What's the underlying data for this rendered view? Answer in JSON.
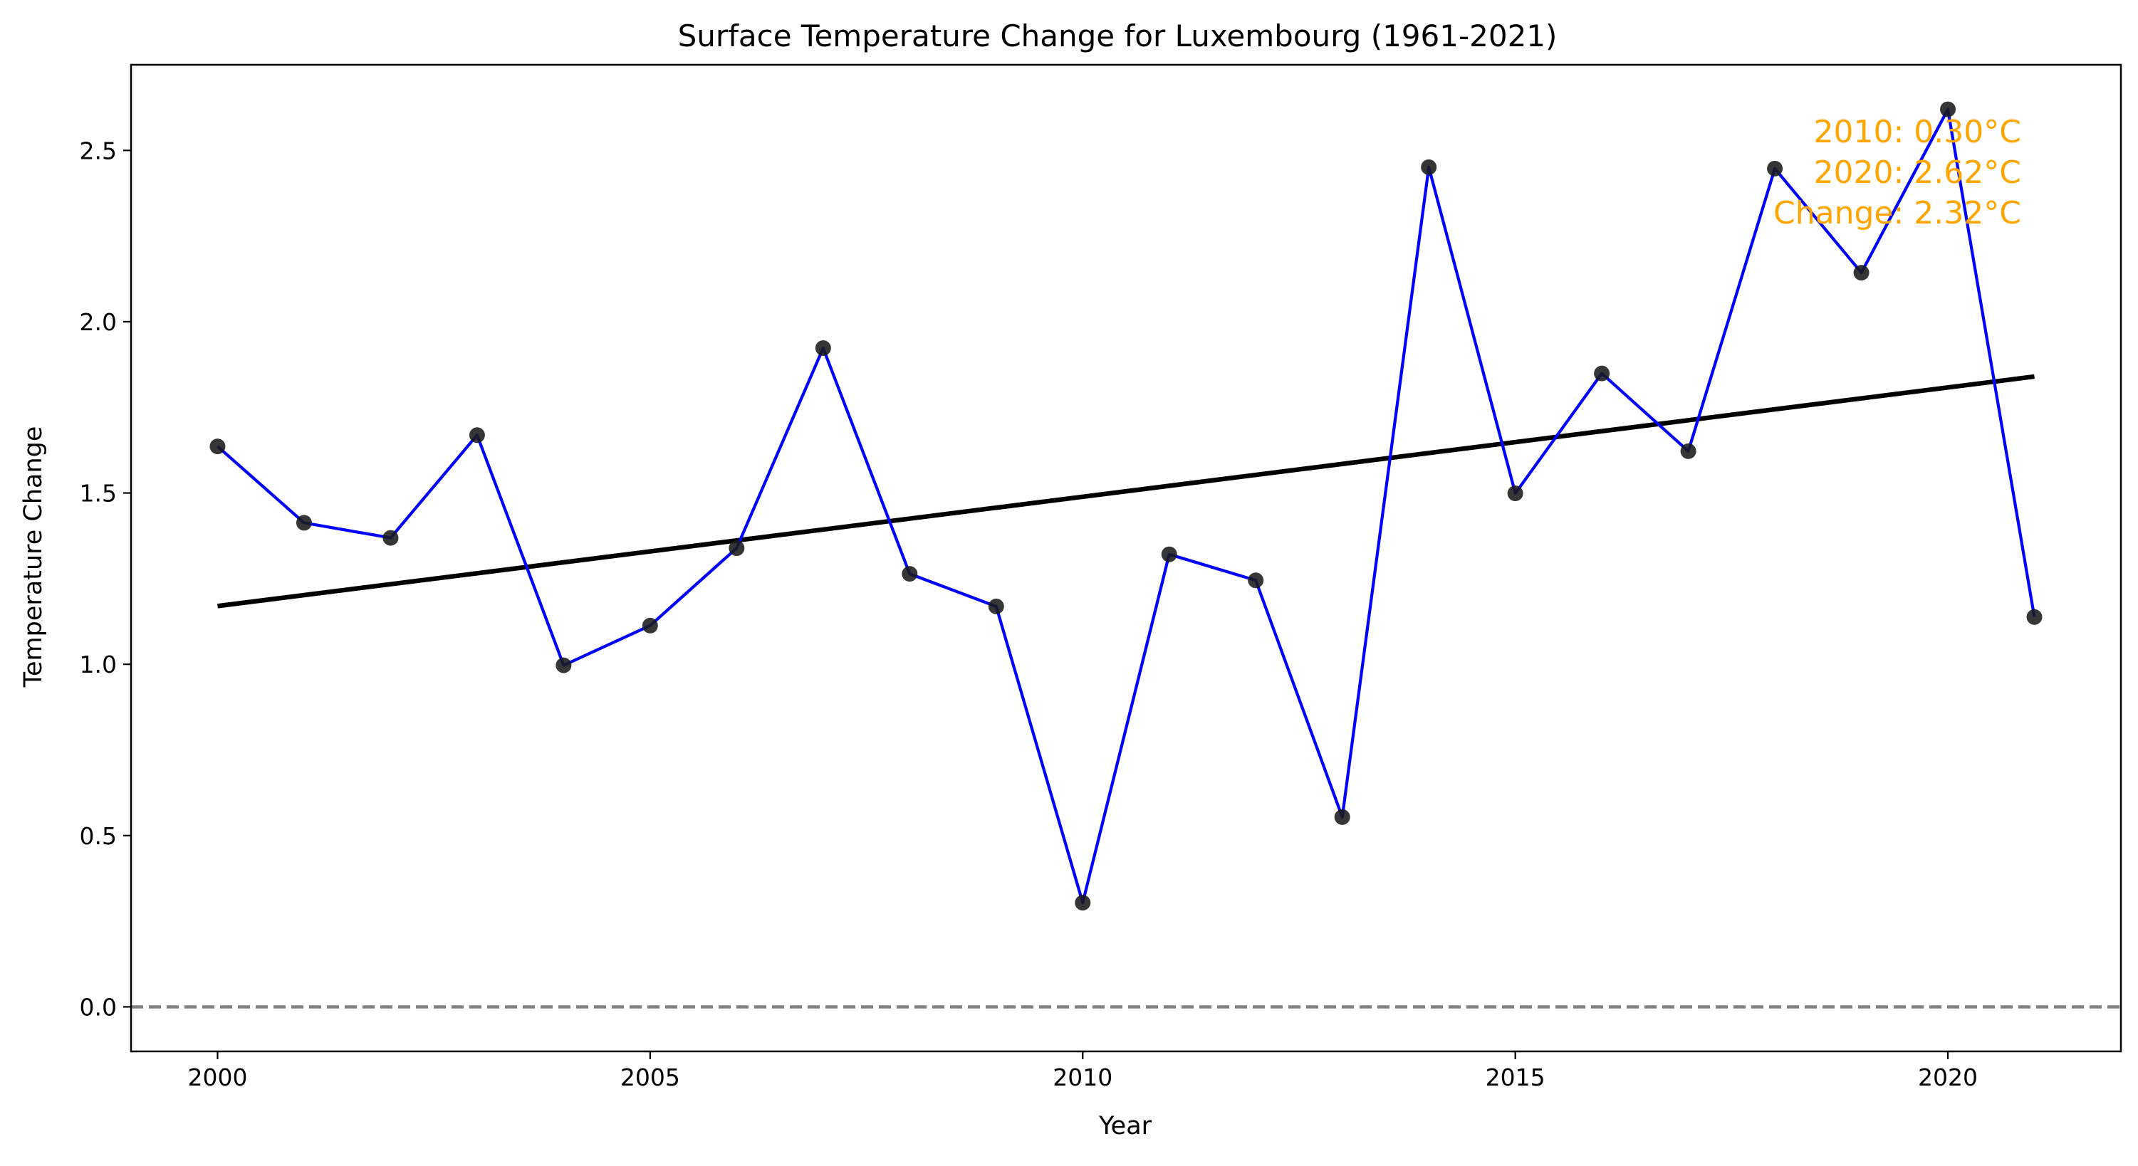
{
  "chart_data": {
    "type": "line",
    "title": "Surface Temperature Change for Luxembourg (1961-2021)",
    "xlabel": "Year",
    "ylabel": "Temperature Change",
    "xlim": [
      1999,
      2022
    ],
    "ylim": [
      -0.13,
      2.75
    ],
    "xticks": [
      2000,
      2005,
      2010,
      2015,
      2020
    ],
    "yticks": [
      0.0,
      0.5,
      1.0,
      1.5,
      2.0,
      2.5
    ],
    "xtick_labels": [
      "2000",
      "2005",
      "2010",
      "2015",
      "2020"
    ],
    "ytick_labels": [
      "0.0",
      "0.5",
      "1.0",
      "1.5",
      "2.0",
      "2.5"
    ],
    "grid": false,
    "x": [
      2000,
      2001,
      2002,
      2003,
      2004,
      2005,
      2006,
      2007,
      2008,
      2009,
      2010,
      2011,
      2012,
      2013,
      2014,
      2015,
      2016,
      2017,
      2018,
      2019,
      2020,
      2021
    ],
    "series": [
      {
        "values": [
          1.636,
          1.413,
          1.369,
          1.669,
          0.997,
          1.113,
          1.339,
          1.923,
          1.264,
          1.169,
          0.304,
          1.321,
          1.245,
          0.554,
          2.451,
          1.499,
          1.849,
          1.622,
          2.447,
          2.143,
          2.62,
          1.138
        ],
        "color": "#0000ff",
        "marker_color": "#1a1a1a"
      }
    ],
    "trend_line": {
      "x": [
        2000,
        2021
      ],
      "y": [
        1.17,
        1.84
      ],
      "color": "#000000"
    },
    "reference_line": {
      "y": 0.0,
      "color": "#808080",
      "style": "dashed"
    },
    "annotation": {
      "lines": [
        "2010: 0.30°C",
        "2020: 2.62°C",
        "Change: 2.32°C"
      ],
      "color": "#ffa500",
      "placement": "top-right"
    }
  }
}
